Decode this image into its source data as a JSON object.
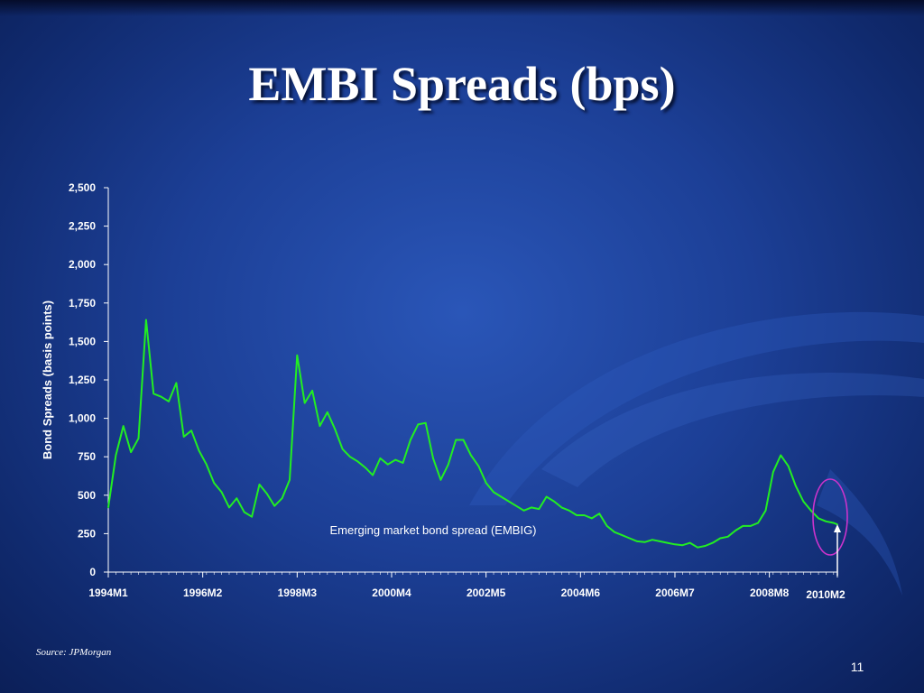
{
  "slide": {
    "title": "EMBI Spreads (bps)",
    "source": "Source: JPMorgan",
    "page_number": "11"
  },
  "colors": {
    "background": "#1c3f96",
    "line": "#22ee22",
    "highlight_circle": "#cc33cc",
    "text": "#ffffff"
  },
  "chart_data": {
    "type": "line",
    "title": "",
    "ylabel": "Bond Spreads (basis points)",
    "xlabel": "",
    "ylim": [
      0,
      2500
    ],
    "yticks": [
      0,
      250,
      500,
      750,
      1000,
      1250,
      1500,
      1750,
      2000,
      2250,
      2500
    ],
    "ytick_labels": [
      "0",
      "250",
      "500",
      "750",
      "1,000",
      "1,250",
      "1,500",
      "1,750",
      "2,000",
      "2,250",
      "2,500"
    ],
    "xticks": [
      "1994M1",
      "1996M2",
      "1998M3",
      "2000M4",
      "2002M5",
      "2004M6",
      "2006M7",
      "2008M8",
      "2010M2"
    ],
    "grid": false,
    "annotation": "Emerging market bond spread (EMBIG)",
    "highlight": "2010M2",
    "series": [
      {
        "name": "Emerging market bond spread (EMBIG)",
        "x": [
          "1994M1",
          "1994M3",
          "1994M5",
          "1994M7",
          "1994M9",
          "1994M11",
          "1995M1",
          "1995M3",
          "1995M5",
          "1995M7",
          "1995M9",
          "1995M11",
          "1996M1",
          "1996M3",
          "1996M5",
          "1996M7",
          "1996M9",
          "1996M11",
          "1997M1",
          "1997M3",
          "1997M5",
          "1997M7",
          "1997M9",
          "1997M11",
          "1998M1",
          "1998M3",
          "1998M5",
          "1998M7",
          "1998M9",
          "1998M11",
          "1999M1",
          "1999M3",
          "1999M5",
          "1999M7",
          "1999M9",
          "1999M11",
          "2000M1",
          "2000M3",
          "2000M5",
          "2000M7",
          "2000M9",
          "2000M11",
          "2001M1",
          "2001M3",
          "2001M5",
          "2001M7",
          "2001M9",
          "2001M11",
          "2002M1",
          "2002M3",
          "2002M5",
          "2002M7",
          "2002M9",
          "2002M11",
          "2003M1",
          "2003M3",
          "2003M5",
          "2003M7",
          "2003M9",
          "2003M11",
          "2004M1",
          "2004M3",
          "2004M5",
          "2004M7",
          "2004M9",
          "2004M11",
          "2005M1",
          "2005M3",
          "2005M5",
          "2005M7",
          "2005M9",
          "2005M11",
          "2006M1",
          "2006M3",
          "2006M5",
          "2006M7",
          "2006M9",
          "2006M11",
          "2007M1",
          "2007M3",
          "2007M5",
          "2007M7",
          "2007M9",
          "2007M11",
          "2008M1",
          "2008M3",
          "2008M5",
          "2008M7",
          "2008M9",
          "2008M11",
          "2009M1",
          "2009M3",
          "2009M5",
          "2009M7",
          "2009M9",
          "2009M11",
          "2010M1",
          "2010M2"
        ],
        "values": [
          420,
          760,
          950,
          780,
          870,
          1640,
          1160,
          1140,
          1110,
          1230,
          880,
          920,
          790,
          700,
          580,
          520,
          420,
          480,
          390,
          360,
          570,
          510,
          430,
          480,
          600,
          1410,
          1100,
          1180,
          950,
          1040,
          930,
          800,
          750,
          720,
          680,
          630,
          740,
          700,
          730,
          710,
          860,
          960,
          970,
          740,
          600,
          700,
          860,
          860,
          760,
          690,
          580,
          520,
          490,
          460,
          430,
          400,
          420,
          410,
          490,
          460,
          420,
          400,
          370,
          370,
          350,
          380,
          300,
          260,
          240,
          220,
          200,
          195,
          210,
          200,
          190,
          180,
          175,
          190,
          160,
          170,
          190,
          220,
          230,
          270,
          300,
          300,
          320,
          400,
          650,
          760,
          690,
          560,
          460,
          400,
          350,
          330,
          320,
          310
        ]
      }
    ]
  }
}
